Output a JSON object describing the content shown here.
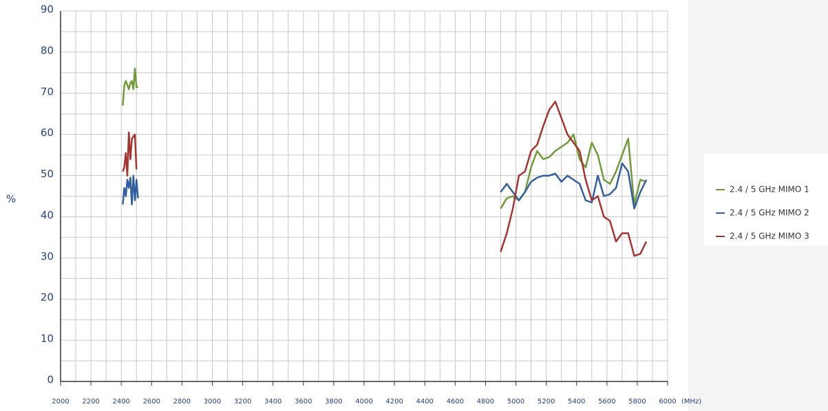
{
  "chart_data": {
    "type": "line",
    "x_label": "(MHz)",
    "y_label": "%",
    "xlim": [
      2000,
      6000
    ],
    "xticks": [
      2000,
      2200,
      2400,
      2600,
      2800,
      3000,
      3200,
      3400,
      3600,
      3800,
      4000,
      4200,
      4400,
      4600,
      4800,
      5000,
      5200,
      5400,
      5600,
      5800,
      6000
    ],
    "ylim": [
      0,
      90
    ],
    "yticks": [
      0,
      10,
      20,
      30,
      40,
      50,
      60,
      70,
      80,
      90
    ],
    "grid": true,
    "legend": "right",
    "x": [
      2410,
      2420,
      2430,
      2440,
      2450,
      2460,
      2470,
      2480,
      2490,
      2500,
      2510,
      3700,
      4900,
      4940,
      4980,
      5020,
      5060,
      5100,
      5140,
      5180,
      5220,
      5260,
      5300,
      5340,
      5380,
      5420,
      5460,
      5500,
      5540,
      5580,
      5620,
      5660,
      5700,
      5740,
      5780,
      5820,
      5860
    ],
    "series": [
      {
        "name": "2.4 / 5 GHz MIMO 1",
        "color": "#6f9a37",
        "values": [
          67,
          72,
          73,
          72,
          71,
          72.5,
          73,
          71,
          76,
          71.5,
          71.5,
          null,
          42,
          44.5,
          45,
          44,
          46,
          52,
          56,
          54,
          54.5,
          56,
          57,
          58,
          60,
          54,
          52,
          58,
          55,
          49,
          48,
          51,
          55,
          59,
          43,
          49,
          48.5
        ]
      },
      {
        "name": "2.4 / 5 GHz MIMO 2",
        "color": "#2f5f9e",
        "values": [
          43,
          47,
          45,
          49,
          47,
          49.5,
          43,
          50,
          44,
          49,
          44.5,
          null,
          46,
          48,
          46,
          44,
          46,
          48.5,
          49.5,
          50,
          50,
          50.5,
          48.5,
          50,
          49,
          48,
          44,
          43.5,
          50,
          45,
          45.5,
          47,
          53,
          51,
          42,
          46,
          49
        ]
      },
      {
        "name": "2.4 / 5 GHz MIMO 3",
        "color": "#a8322d",
        "values": [
          51,
          52,
          55.5,
          50,
          60.5,
          54,
          59,
          59.5,
          60,
          51.5,
          null,
          null,
          31.5,
          36,
          42,
          50,
          51,
          56,
          57.5,
          62,
          66,
          68,
          64,
          60,
          58,
          56,
          49,
          44,
          45,
          40,
          39,
          34,
          36,
          36,
          30.5,
          31,
          34
        ]
      }
    ]
  }
}
